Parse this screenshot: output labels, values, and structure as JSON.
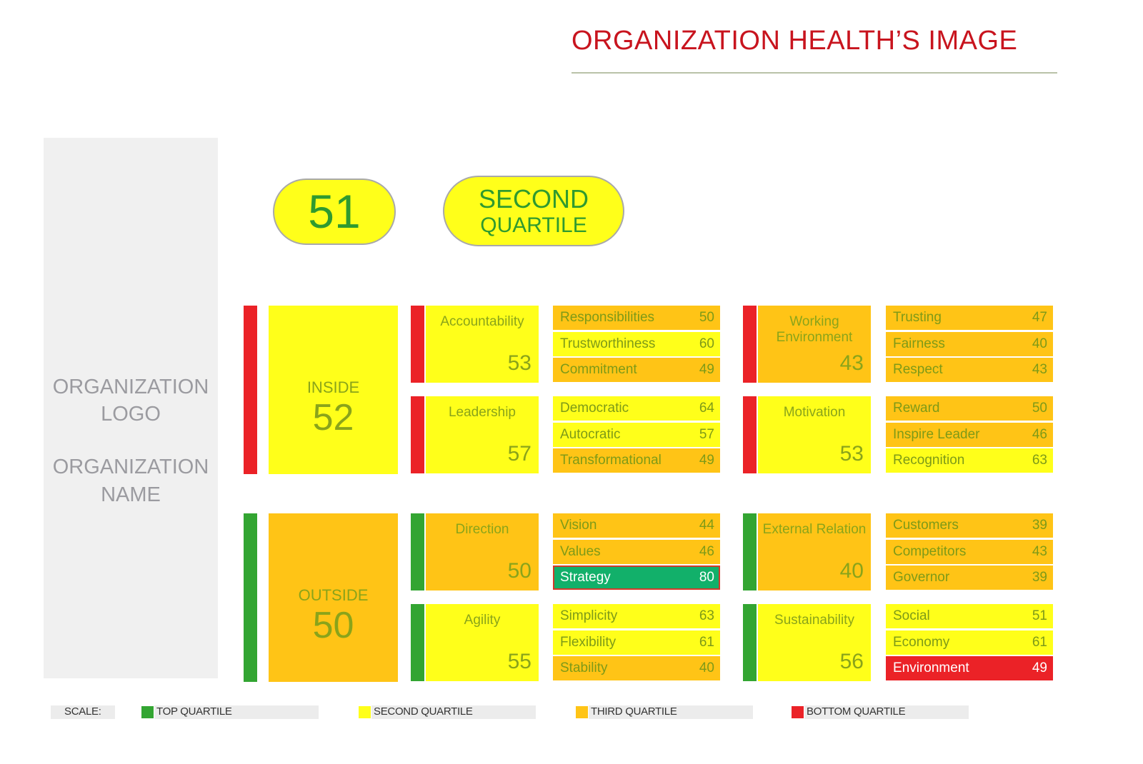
{
  "title": "ORGANIZATION HEALTH’S IMAGE",
  "logo_panel": {
    "line1": "ORGANIZATION",
    "line2": "LOGO",
    "line3": "ORGANIZATION",
    "line4": "NAME"
  },
  "overall_score": "51",
  "overall_quartile": {
    "line1": "SECOND",
    "line2": "QUARTILE"
  },
  "colors": {
    "green": "#33a532",
    "yellow": "#ffff1a",
    "orange": "#ffc416",
    "red": "#eb2227",
    "strategy_green": "#12b06a"
  },
  "groups": [
    {
      "label": "INSIDE",
      "value": "52",
      "quartile_color": "yellow",
      "bar_color": "red"
    },
    {
      "label": "OUTSIDE",
      "value": "50",
      "quartile_color": "orange",
      "bar_color": "green"
    }
  ],
  "dimensions": [
    {
      "label": "Accountability",
      "value": "53",
      "quartile_color": "yellow",
      "bar_color": "red",
      "items": [
        {
          "label": "Responsibilities",
          "value": "50",
          "quartile_color": "orange"
        },
        {
          "label": "Trustworthiness",
          "value": "60",
          "quartile_color": "yellow"
        },
        {
          "label": "Commitment",
          "value": "49",
          "quartile_color": "orange"
        }
      ]
    },
    {
      "label": "Leadership",
      "value": "57",
      "quartile_color": "yellow",
      "bar_color": "red",
      "items": [
        {
          "label": "Democratic",
          "value": "64",
          "quartile_color": "yellow"
        },
        {
          "label": "Autocratic",
          "value": "57",
          "quartile_color": "yellow"
        },
        {
          "label": "Transformational",
          "value": "49",
          "quartile_color": "orange"
        }
      ]
    },
    {
      "label": "Working Environment",
      "value": "43",
      "quartile_color": "orange",
      "bar_color": "red",
      "items": [
        {
          "label": "Trusting",
          "value": "47",
          "quartile_color": "orange"
        },
        {
          "label": "Fairness",
          "value": "40",
          "quartile_color": "orange"
        },
        {
          "label": "Respect",
          "value": "43",
          "quartile_color": "orange"
        }
      ]
    },
    {
      "label": "Motivation",
      "value": "53",
      "quartile_color": "yellow",
      "bar_color": "red",
      "items": [
        {
          "label": "Reward",
          "value": "50",
          "quartile_color": "orange"
        },
        {
          "label": "Inspire Leader",
          "value": "46",
          "quartile_color": "orange"
        },
        {
          "label": "Recognition",
          "value": "63",
          "quartile_color": "yellow"
        }
      ]
    },
    {
      "label": "Direction",
      "value": "50",
      "quartile_color": "orange",
      "bar_color": "green",
      "items": [
        {
          "label": "Vision",
          "value": "44",
          "quartile_color": "orange"
        },
        {
          "label": "Values",
          "value": "46",
          "quartile_color": "orange"
        },
        {
          "label": "Strategy",
          "value": "80",
          "quartile_color": "strategy_green"
        }
      ]
    },
    {
      "label": "Agility",
      "value": "55",
      "quartile_color": "yellow",
      "bar_color": "green",
      "items": [
        {
          "label": "Simplicity",
          "value": "63",
          "quartile_color": "yellow"
        },
        {
          "label": "Flexibility",
          "value": "61",
          "quartile_color": "yellow"
        },
        {
          "label": "Stability",
          "value": "40",
          "quartile_color": "orange"
        }
      ]
    },
    {
      "label": "External Relation",
      "value": "40",
      "quartile_color": "orange",
      "bar_color": "green",
      "items": [
        {
          "label": "Customers",
          "value": "39",
          "quartile_color": "orange"
        },
        {
          "label": "Competitors",
          "value": "43",
          "quartile_color": "orange"
        },
        {
          "label": "Governor",
          "value": "39",
          "quartile_color": "orange"
        }
      ]
    },
    {
      "label": "Sustainability",
      "value": "56",
      "quartile_color": "yellow",
      "bar_color": "green",
      "items": [
        {
          "label": "Social",
          "value": "51",
          "quartile_color": "yellow"
        },
        {
          "label": "Economy",
          "value": "61",
          "quartile_color": "yellow"
        },
        {
          "label": "Environment",
          "value": "49",
          "quartile_color": "red"
        }
      ]
    }
  ],
  "scale": {
    "label": "SCALE:",
    "entries": [
      {
        "label": "TOP QUARTILE",
        "color": "green"
      },
      {
        "label": "SECOND QUARTILE",
        "color": "yellow"
      },
      {
        "label": "THIRD QUARTILE",
        "color": "orange"
      },
      {
        "label": "BOTTOM QUARTILE",
        "color": "red"
      }
    ]
  }
}
